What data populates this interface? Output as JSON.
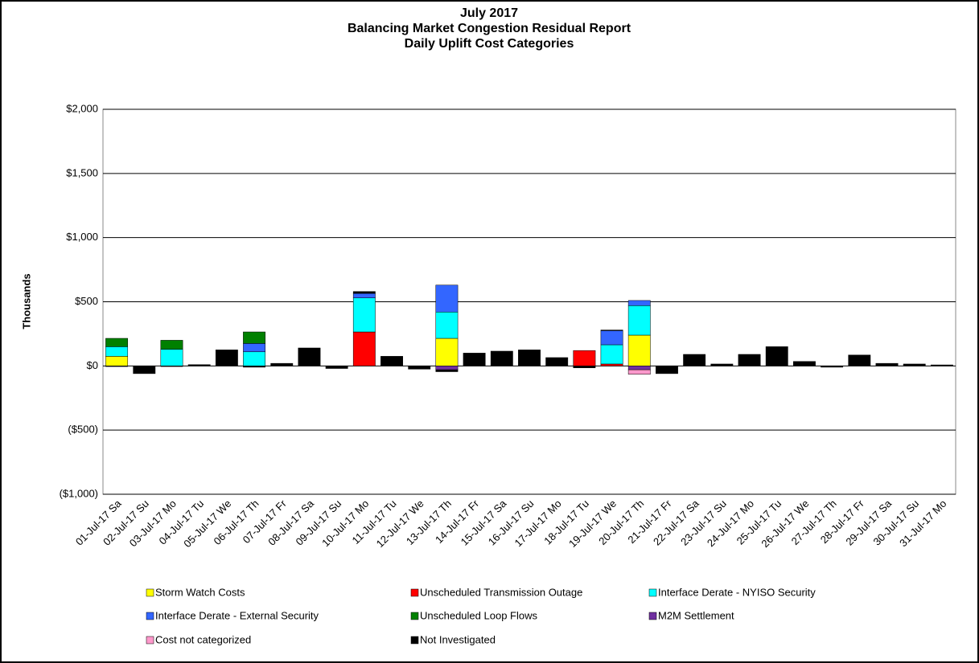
{
  "chart_data": {
    "type": "stacked_bar",
    "title": [
      "July 2017",
      "Balancing Market Congestion Residual Report",
      "Daily Uplift Cost Categories"
    ],
    "y_label": "Thousands",
    "categories": [
      "01-Jul-17 Sa",
      "02-Jul-17 Su",
      "03-Jul-17 Mo",
      "04-Jul-17 Tu",
      "05-Jul-17 We",
      "06-Jul-17 Th",
      "07-Jul-17 Fr",
      "08-Jul-17 Sa",
      "09-Jul-17 Su",
      "10-Jul-17 Mo",
      "11-Jul-17 Tu",
      "12-Jul-17 We",
      "13-Jul-17 Th",
      "14-Jul-17 Fr",
      "15-Jul-17 Sa",
      "16-Jul-17 Su",
      "17-Jul-17 Mo",
      "18-Jul-17 Tu",
      "19-Jul-17 We",
      "20-Jul-17 Th",
      "21-Jul-17 Fr",
      "22-Jul-17 Sa",
      "23-Jul-17 Su",
      "24-Jul-17 Mo",
      "25-Jul-17 Tu",
      "26-Jul-17 We",
      "27-Jul-17 Th",
      "28-Jul-17 Fr",
      "29-Jul-17 Sa",
      "30-Jul-17 Su",
      "31-Jul-17 Mo"
    ],
    "series": [
      {
        "name": "Storm Watch Costs",
        "color": "#ffff00",
        "values": [
          75,
          0,
          0,
          0,
          0,
          0,
          0,
          0,
          0,
          0,
          0,
          0,
          215,
          0,
          0,
          0,
          0,
          0,
          0,
          240,
          0,
          0,
          0,
          0,
          0,
          0,
          0,
          0,
          0,
          0,
          0
        ]
      },
      {
        "name": "Unscheduled Transmission Outage",
        "color": "#ff0000",
        "values": [
          0,
          0,
          0,
          0,
          0,
          0,
          0,
          0,
          0,
          265,
          0,
          0,
          0,
          0,
          0,
          0,
          0,
          120,
          15,
          0,
          0,
          0,
          0,
          0,
          0,
          0,
          0,
          0,
          0,
          0,
          0
        ]
      },
      {
        "name": "Interface Derate - NYISO Security",
        "color": "#00ffff",
        "values": [
          75,
          0,
          130,
          0,
          0,
          110,
          0,
          0,
          0,
          265,
          0,
          0,
          205,
          0,
          0,
          0,
          0,
          0,
          150,
          230,
          0,
          0,
          0,
          0,
          0,
          0,
          0,
          0,
          0,
          0,
          0
        ]
      },
      {
        "name": "Interface Derate - External Security",
        "color": "#3366ff",
        "values": [
          0,
          0,
          0,
          0,
          0,
          65,
          0,
          0,
          0,
          35,
          0,
          0,
          210,
          0,
          0,
          0,
          0,
          0,
          110,
          40,
          0,
          0,
          0,
          0,
          0,
          0,
          0,
          0,
          0,
          0,
          0
        ]
      },
      {
        "name": "Unscheduled Loop Flows",
        "color": "#008000",
        "values": [
          65,
          0,
          70,
          0,
          0,
          90,
          0,
          0,
          0,
          0,
          0,
          0,
          0,
          0,
          0,
          0,
          0,
          0,
          0,
          0,
          0,
          0,
          0,
          0,
          0,
          0,
          0,
          0,
          0,
          0,
          0
        ]
      },
      {
        "name": "M2M Settlement",
        "color": "#7030a0",
        "values": [
          0,
          0,
          0,
          0,
          0,
          0,
          0,
          0,
          0,
          0,
          0,
          0,
          -30,
          0,
          0,
          0,
          0,
          0,
          0,
          -30,
          0,
          0,
          0,
          0,
          0,
          0,
          0,
          0,
          0,
          0,
          0
        ]
      },
      {
        "name": "Cost not categorized",
        "color": "#ff99cc",
        "values": [
          0,
          0,
          0,
          0,
          0,
          0,
          0,
          0,
          0,
          0,
          0,
          0,
          0,
          0,
          0,
          0,
          0,
          0,
          0,
          -35,
          0,
          0,
          0,
          0,
          0,
          0,
          0,
          0,
          0,
          0,
          0
        ]
      },
      {
        "name": "Not Investigated",
        "color": "#000000",
        "values": [
          -5,
          -60,
          -5,
          10,
          125,
          -10,
          20,
          140,
          -20,
          15,
          75,
          -25,
          -15,
          100,
          115,
          125,
          65,
          -15,
          5,
          0,
          -60,
          90,
          15,
          90,
          150,
          35,
          -10,
          85,
          20,
          15,
          8
        ]
      }
    ],
    "ylim": [
      -1000,
      2000
    ],
    "yticks": [
      {
        "value": -1000,
        "label": "($1,000)"
      },
      {
        "value": -500,
        "label": "($500)"
      },
      {
        "value": 0,
        "label": "$0"
      },
      {
        "value": 500,
        "label": "$500"
      },
      {
        "value": 1000,
        "label": "$1,000"
      },
      {
        "value": 1500,
        "label": "$1,500"
      },
      {
        "value": 2000,
        "label": "$2,000"
      }
    ],
    "negative_tick_color": "#ff0000",
    "grid": true
  }
}
